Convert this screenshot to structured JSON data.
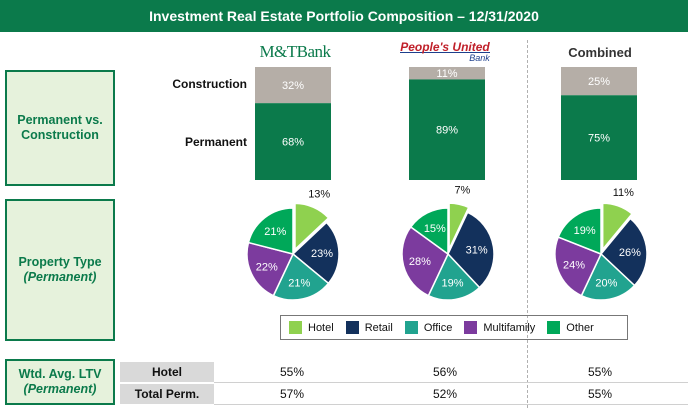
{
  "title": "Investment Real Estate Portfolio Composition – 12/31/2020",
  "row_labels": {
    "perm_vs_const": "Permanent vs. Construction",
    "property_type": "Property Type",
    "property_type_sub": "(Permanent)",
    "ltv": "Wtd. Avg. LTV",
    "ltv_sub": "(Permanent)"
  },
  "columns": {
    "mt_bank": "M&TBank",
    "peoples_united_line1": "People's United",
    "peoples_united_line2": "Bank",
    "combined": "Combined"
  },
  "colors": {
    "brand_green": "#0b7a4b",
    "construction_gray": "#b5aea7",
    "hotel": "#8fd14f",
    "retail": "#13315c",
    "office": "#21a38f",
    "multifamily": "#7c3b9e",
    "other": "#00a859"
  },
  "chart_data": [
    {
      "type": "bar",
      "stacked": true,
      "categories": [
        "M&T Bank",
        "People's United Bank",
        "Combined"
      ],
      "series": [
        {
          "name": "Permanent",
          "values": [
            68,
            89,
            75
          ]
        },
        {
          "name": "Construction",
          "values": [
            32,
            11,
            25
          ]
        }
      ],
      "labels": [
        "68%",
        "89%",
        "75%",
        "32%",
        "11%",
        "25%"
      ],
      "ylim": [
        0,
        100
      ]
    },
    {
      "type": "pie",
      "legend_position": "bottom",
      "legend": [
        "Hotel",
        "Retail",
        "Office",
        "Multifamily",
        "Other"
      ],
      "pies": [
        {
          "category": "M&T Bank",
          "values": [
            13,
            23,
            21,
            22,
            21
          ],
          "labels": [
            "13%",
            "23%",
            "21%",
            "22%",
            "21%"
          ]
        },
        {
          "category": "People's United Bank",
          "values": [
            7,
            31,
            19,
            28,
            15
          ],
          "labels": [
            "7%",
            "31%",
            "19%",
            "28%",
            "15%"
          ]
        },
        {
          "category": "Combined",
          "values": [
            11,
            26,
            20,
            24,
            19
          ],
          "labels": [
            "11%",
            "26%",
            "20%",
            "24%",
            "19%"
          ]
        }
      ]
    },
    {
      "type": "table",
      "rows": [
        {
          "label": "Hotel",
          "values": [
            "55%",
            "56%",
            "55%"
          ]
        },
        {
          "label": "Total Perm.",
          "values": [
            "57%",
            "52%",
            "55%"
          ]
        }
      ]
    }
  ]
}
